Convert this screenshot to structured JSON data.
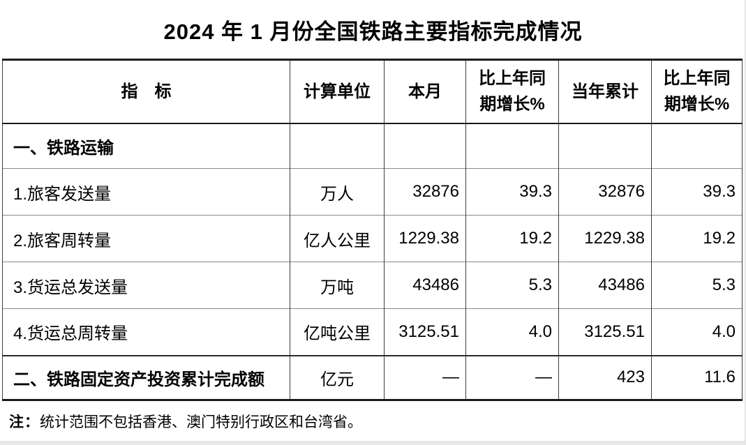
{
  "page": {
    "title": "2024 年 1 月份全国铁路主要指标完成情况",
    "note_label": "注：",
    "note_text": "统计范围不包括香港、澳门特别行政区和台湾省。"
  },
  "table": {
    "columns": [
      {
        "label": "指　标"
      },
      {
        "label": "计算单位"
      },
      {
        "label": "本月"
      },
      {
        "label": "比上年同期增长%"
      },
      {
        "label": "当年累计"
      },
      {
        "label": "比上年同期增长%"
      }
    ],
    "rows": [
      {
        "type": "section",
        "indicator": "一、铁路运输",
        "unit": "",
        "month": "",
        "month_growth": "",
        "ytd": "",
        "ytd_growth": ""
      },
      {
        "type": "data",
        "indicator": "1.旅客发送量",
        "unit": "万人",
        "month": "32876",
        "month_growth": "39.3",
        "ytd": "32876",
        "ytd_growth": "39.3"
      },
      {
        "type": "data",
        "indicator": "2.旅客周转量",
        "unit": "亿人公里",
        "month": "1229.38",
        "month_growth": "19.2",
        "ytd": "1229.38",
        "ytd_growth": "19.2"
      },
      {
        "type": "data",
        "indicator": "3.货运总发送量",
        "unit": "万吨",
        "month": "43486",
        "month_growth": "5.3",
        "ytd": "43486",
        "ytd_growth": "5.3"
      },
      {
        "type": "data",
        "indicator": "4.货运总周转量",
        "unit": "亿吨公里",
        "month": "3125.51",
        "month_growth": "4.0",
        "ytd": "3125.51",
        "ytd_growth": "4.0"
      },
      {
        "type": "section-data",
        "indicator": "二、铁路固定资产投资累计完成额",
        "unit": "亿元",
        "month": "—",
        "month_growth": "—",
        "ytd": "423",
        "ytd_growth": "11.6"
      }
    ]
  }
}
